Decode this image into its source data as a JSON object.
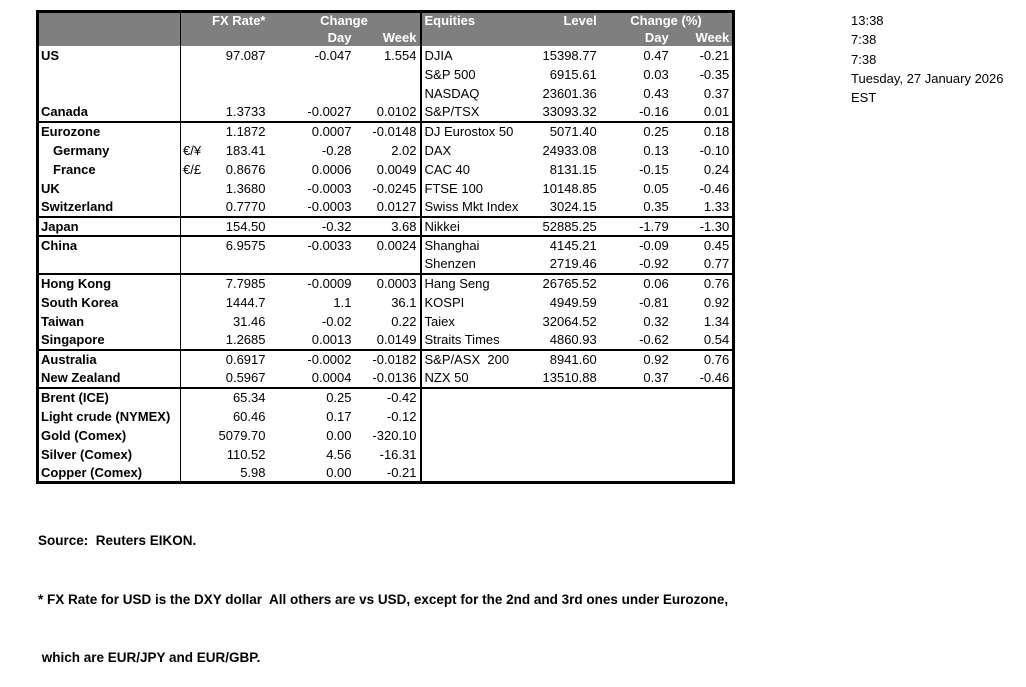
{
  "clock": {
    "lines": [
      "13:38",
      "7:38",
      "7:38",
      "Tuesday, 27 January 2026",
      "EST"
    ]
  },
  "table": {
    "fx_header": {
      "rate": "FX Rate*",
      "change": "Change",
      "day": "Day",
      "week": "Week"
    },
    "eq_header": {
      "name": "Equities",
      "level": "Level",
      "change": "Change (%)",
      "day": "Day",
      "week": "Week"
    },
    "rows": [
      {
        "label": "US",
        "pair": "",
        "rate": "97.087",
        "day": "-0.047",
        "week": "1.554",
        "eq_name": "DJIA",
        "eq_level": "15398.77",
        "eq_day": "0.47",
        "eq_week": "-0.21",
        "indent": false,
        "group_end": false
      },
      {
        "label": "",
        "pair": "",
        "rate": "",
        "day": "",
        "week": "",
        "eq_name": "S&P 500",
        "eq_level": "6915.61",
        "eq_day": "0.03",
        "eq_week": "-0.35",
        "indent": false,
        "group_end": false
      },
      {
        "label": "",
        "pair": "",
        "rate": "",
        "day": "",
        "week": "",
        "eq_name": "NASDAQ",
        "eq_level": "23601.36",
        "eq_day": "0.43",
        "eq_week": "0.37",
        "indent": false,
        "group_end": false
      },
      {
        "label": "Canada",
        "pair": "",
        "rate": "1.3733",
        "day": "-0.0027",
        "week": "0.0102",
        "eq_name": "S&P/TSX",
        "eq_level": "33093.32",
        "eq_day": "-0.16",
        "eq_week": "0.01",
        "indent": false,
        "group_end": true
      },
      {
        "label": "Eurozone",
        "pair": "",
        "rate": "1.1872",
        "day": "0.0007",
        "week": "-0.0148",
        "eq_name": "DJ Eurostox 50",
        "eq_level": "5071.40",
        "eq_day": "0.25",
        "eq_week": "0.18",
        "indent": false,
        "group_end": false
      },
      {
        "label": "Germany",
        "pair": "€/¥",
        "rate": "183.41",
        "day": "-0.28",
        "week": "2.02",
        "eq_name": "DAX",
        "eq_level": "24933.08",
        "eq_day": "0.13",
        "eq_week": "-0.10",
        "indent": true,
        "group_end": false
      },
      {
        "label": "France",
        "pair": "€/£",
        "rate": "0.8676",
        "day": "0.0006",
        "week": "0.0049",
        "eq_name": "CAC 40",
        "eq_level": "8131.15",
        "eq_day": "-0.15",
        "eq_week": "0.24",
        "indent": true,
        "group_end": false
      },
      {
        "label": "UK",
        "pair": "",
        "rate": "1.3680",
        "day": "-0.0003",
        "week": "-0.0245",
        "eq_name": "FTSE 100",
        "eq_level": "10148.85",
        "eq_day": "0.05",
        "eq_week": "-0.46",
        "indent": false,
        "group_end": false
      },
      {
        "label": "Switzerland",
        "pair": "",
        "rate": "0.7770",
        "day": "-0.0003",
        "week": "0.0127",
        "eq_name": "Swiss Mkt Index",
        "eq_level": "3024.15",
        "eq_day": "0.35",
        "eq_week": "1.33",
        "indent": false,
        "group_end": true
      },
      {
        "label": "Japan",
        "pair": "",
        "rate": "154.50",
        "day": "-0.32",
        "week": "3.68",
        "eq_name": "Nikkei",
        "eq_level": "52885.25",
        "eq_day": "-1.79",
        "eq_week": "-1.30",
        "indent": false,
        "group_end": true
      },
      {
        "label": "China",
        "pair": "",
        "rate": "6.9575",
        "day": "-0.0033",
        "week": "0.0024",
        "eq_name": "Shanghai",
        "eq_level": "4145.21",
        "eq_day": "-0.09",
        "eq_week": "0.45",
        "indent": false,
        "group_end": false
      },
      {
        "label": "",
        "pair": "",
        "rate": "",
        "day": "",
        "week": "",
        "eq_name": "Shenzen",
        "eq_level": "2719.46",
        "eq_day": "-0.92",
        "eq_week": "0.77",
        "indent": false,
        "group_end": true
      },
      {
        "label": "Hong Kong",
        "pair": "",
        "rate": "7.7985",
        "day": "-0.0009",
        "week": "0.0003",
        "eq_name": "Hang Seng",
        "eq_level": "26765.52",
        "eq_day": "0.06",
        "eq_week": "0.76",
        "indent": false,
        "group_end": false
      },
      {
        "label": "South Korea",
        "pair": "",
        "rate": "1444.7",
        "day": "1.1",
        "week": "36.1",
        "eq_name": "KOSPI",
        "eq_level": "4949.59",
        "eq_day": "-0.81",
        "eq_week": "0.92",
        "indent": false,
        "group_end": false
      },
      {
        "label": "Taiwan",
        "pair": "",
        "rate": "31.46",
        "day": "-0.02",
        "week": "0.22",
        "eq_name": "Taiex",
        "eq_level": "32064.52",
        "eq_day": "0.32",
        "eq_week": "1.34",
        "indent": false,
        "group_end": false
      },
      {
        "label": "Singapore",
        "pair": "",
        "rate": "1.2685",
        "day": "0.0013",
        "week": "0.0149",
        "eq_name": "Straits Times",
        "eq_level": "4860.93",
        "eq_day": "-0.62",
        "eq_week": "0.54",
        "indent": false,
        "group_end": true
      },
      {
        "label": "Australia",
        "pair": "",
        "rate": "0.6917",
        "day": "-0.0002",
        "week": "-0.0182",
        "eq_name": "S&P/ASX  200",
        "eq_level": "8941.60",
        "eq_day": "0.92",
        "eq_week": "0.76",
        "indent": false,
        "group_end": false
      },
      {
        "label": "New Zealand",
        "pair": "",
        "rate": "0.5967",
        "day": "0.0004",
        "week": "-0.0136",
        "eq_name": "NZX 50",
        "eq_level": "13510.88",
        "eq_day": "0.37",
        "eq_week": "-0.46",
        "indent": false,
        "group_end": true
      },
      {
        "label": "Brent (ICE)",
        "pair": "",
        "rate": "65.34",
        "day": "0.25",
        "week": "-0.42",
        "eq_name": "",
        "eq_level": "",
        "eq_day": "",
        "eq_week": "",
        "indent": false,
        "group_end": false
      },
      {
        "label": "Light crude (NYMEX)",
        "pair": "",
        "rate": "60.46",
        "day": "0.17",
        "week": "-0.12",
        "eq_name": "",
        "eq_level": "",
        "eq_day": "",
        "eq_week": "",
        "indent": false,
        "group_end": false
      },
      {
        "label": "Gold (Comex)",
        "pair": "",
        "rate": "5079.70",
        "day": "0.00",
        "week": "-320.10",
        "eq_name": "",
        "eq_level": "",
        "eq_day": "",
        "eq_week": "",
        "indent": false,
        "group_end": false
      },
      {
        "label": "Silver (Comex)",
        "pair": "",
        "rate": "110.52",
        "day": "4.56",
        "week": "-16.31",
        "eq_name": "",
        "eq_level": "",
        "eq_day": "",
        "eq_week": "",
        "indent": false,
        "group_end": false
      },
      {
        "label": "Copper (Comex)",
        "pair": "",
        "rate": "5.98",
        "day": "0.00",
        "week": "-0.21",
        "eq_name": "",
        "eq_level": "",
        "eq_day": "",
        "eq_week": "",
        "indent": false,
        "group_end": false
      }
    ]
  },
  "footer": {
    "source": "Source:  Reuters EIKON.",
    "note1": "* FX Rate for USD is the DXY dollar  All others are vs USD, except for the 2nd and 3rd ones under Eurozone,",
    "note2": " which are EUR/JPY and EUR/GBP."
  },
  "colors": {
    "header_bg": "#7f7f7f",
    "header_text": "#ffffff",
    "border": "#000000"
  }
}
